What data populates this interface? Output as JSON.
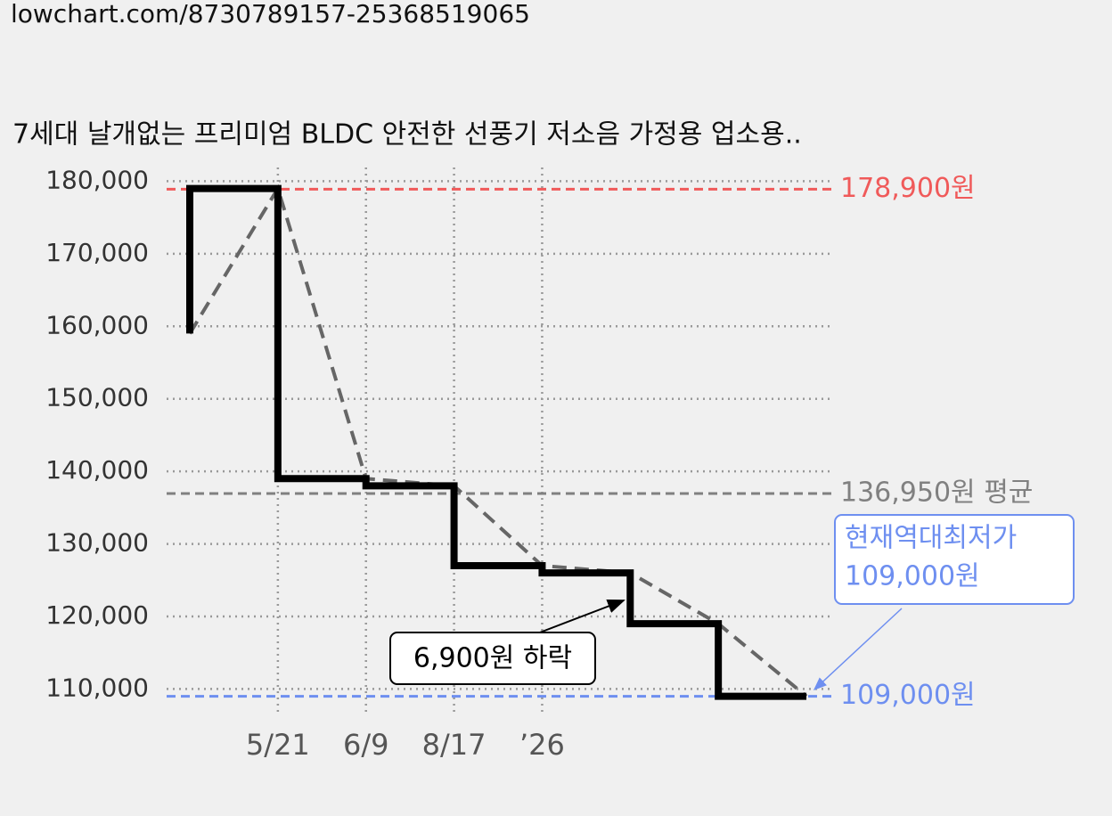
{
  "url": "lowchart.com/8730789157-25368519065",
  "chart_data": {
    "type": "step-line",
    "title": "7세대 날개없는 프리미엄 BLDC 안전한 선풍기 저소음 가정용 업소용..",
    "categories": [
      null,
      "5/21",
      "6/9",
      "8/17",
      "’26",
      null,
      null,
      null
    ],
    "series": [
      {
        "color": "#000000",
        "style": "step",
        "values": [
          159000,
          179000,
          139000,
          138000,
          127000,
          126000,
          119000,
          109000
        ]
      },
      {
        "color": "#666666",
        "style": "dashed",
        "values": [
          159000,
          179000,
          139000,
          138000,
          127000,
          126000,
          119000,
          109000
        ]
      }
    ],
    "ylim": [
      106000,
      183000
    ],
    "yticks": [
      {
        "value": 110000,
        "label": "110,000"
      },
      {
        "value": 120000,
        "label": "120,000"
      },
      {
        "value": 130000,
        "label": "130,000"
      },
      {
        "value": 140000,
        "label": "140,000"
      },
      {
        "value": 150000,
        "label": "150,000"
      },
      {
        "value": 160000,
        "label": "160,000"
      },
      {
        "value": 170000,
        "label": "170,000"
      },
      {
        "value": 180000,
        "label": "180,000"
      }
    ],
    "grid": true,
    "ref_lines": [
      {
        "value": 178900,
        "label": "178,900원",
        "color": "#f05a5a"
      },
      {
        "value": 136950,
        "label": "136,950원 평균",
        "color": "#808080"
      },
      {
        "value": 109000,
        "label": "109,000원",
        "color": "#6e8ff0"
      }
    ],
    "annotations": [
      {
        "text": "6,900원 하락"
      },
      {
        "lines": [
          "현재역대최저가",
          "109,000원"
        ],
        "color": "#6e8ff0"
      }
    ]
  }
}
